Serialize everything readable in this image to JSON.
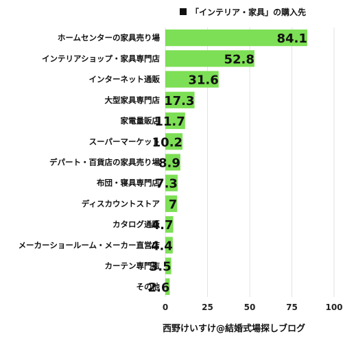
{
  "chart_data": {
    "type": "bar",
    "orientation": "horizontal",
    "legend": {
      "label": "「インテリア・家具」の購入先",
      "placement": "top-right",
      "marker_color": "#111111"
    },
    "categories": [
      "ホームセンターの家具売り場",
      "インテリアショップ・家具専門店",
      "インターネット通販",
      "大型家具専門店",
      "家電量販店",
      "スーパーマーケット",
      "デパート・百貨店の家具売り場",
      "布団・寝具専門店",
      "ディスカウントストア",
      "カタログ通販",
      "メーカーショールーム・メーカー直営店",
      "カーテン専門店",
      "その他"
    ],
    "values": [
      84.1,
      52.8,
      31.6,
      17.3,
      11.7,
      10.2,
      8.9,
      7.3,
      7,
      4.7,
      4.4,
      3.5,
      2.6
    ],
    "value_labels": [
      "84.1",
      "52.8",
      "31.6",
      "17.3",
      "11.7",
      "10.2",
      "8.9",
      "7.3",
      "7",
      "4.7",
      "4.4",
      "3.5",
      "2.6"
    ],
    "xlim": [
      0,
      100
    ],
    "x_ticks": [
      0,
      25,
      50,
      75,
      100
    ],
    "x_tick_labels": [
      "0",
      "25",
      "50",
      "75",
      "100"
    ],
    "grid": true,
    "bar_color": "#7ddf55",
    "grid_color": "#e2e2e2"
  },
  "footer": {
    "text": "西野けいすけ@結婚式場探しブログ"
  }
}
